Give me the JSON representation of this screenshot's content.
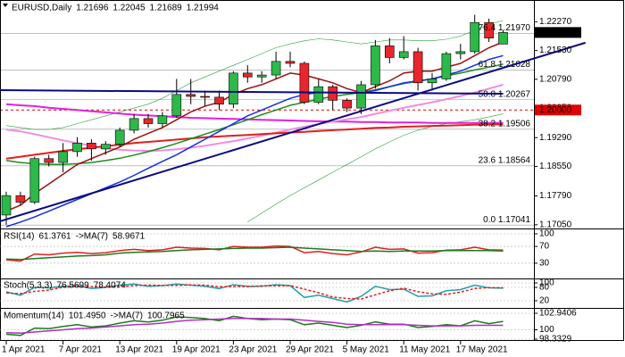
{
  "chart_data": [
    {
      "type": "candlestick",
      "title": "EURUSD,Daily",
      "up_color": "#2db84a",
      "down_color": "#e8262b",
      "categories": [
        "1 Apr 2021",
        null,
        null,
        null,
        "7 Apr 2021",
        null,
        null,
        null,
        "13 Apr 2021",
        null,
        null,
        null,
        "19 Apr 2021",
        null,
        null,
        null,
        "23 Apr 2021",
        null,
        null,
        null,
        "29 Apr 2021",
        null,
        null,
        null,
        "5 May 2021",
        null,
        null,
        null,
        "11 May 2021",
        null,
        null,
        null,
        "17 May 2021",
        null,
        null,
        null
      ],
      "open": [
        1.173,
        1.178,
        1.1763,
        1.1875,
        1.1865,
        1.1893,
        1.1915,
        1.19,
        1.1912,
        1.1948,
        1.1978,
        1.1965,
        1.1985,
        1.204,
        1.2035,
        1.2033,
        1.2015,
        1.2095,
        1.2085,
        1.209,
        1.2125,
        1.212,
        1.202,
        1.206,
        1.2025,
        1.2005,
        1.2065,
        1.2165,
        1.2135,
        1.215,
        1.207,
        1.208,
        1.2145,
        1.215,
        1.2225,
        1.21696
      ],
      "high": [
        1.179,
        1.179,
        1.188,
        1.1885,
        1.1915,
        1.193,
        1.1925,
        1.192,
        1.1955,
        1.199,
        1.199,
        1.1995,
        1.208,
        1.208,
        1.205,
        1.205,
        1.21,
        1.2115,
        1.21,
        1.215,
        1.215,
        1.2125,
        1.208,
        1.2065,
        1.203,
        1.2075,
        1.218,
        1.2185,
        1.219,
        1.216,
        1.2095,
        1.215,
        1.217,
        1.2245,
        1.2235,
        1.22045
      ],
      "low": [
        1.1705,
        1.1755,
        1.1758,
        1.1855,
        1.184,
        1.188,
        1.187,
        1.1885,
        1.1905,
        1.194,
        1.1955,
        1.1955,
        1.198,
        1.2015,
        1.201,
        1.2,
        1.2005,
        1.207,
        1.207,
        1.208,
        1.211,
        1.2015,
        1.2015,
        1.2,
        1.1995,
        1.199,
        1.2055,
        1.212,
        1.213,
        1.205,
        1.205,
        1.2075,
        1.213,
        1.2145,
        1.2175,
        1.21689
      ],
      "close": [
        1.178,
        1.1763,
        1.1875,
        1.1865,
        1.1893,
        1.1915,
        1.19,
        1.1912,
        1.1948,
        1.1978,
        1.1965,
        1.1985,
        1.204,
        1.2035,
        1.2033,
        1.2015,
        1.2095,
        1.2085,
        1.209,
        1.2125,
        1.212,
        1.202,
        1.206,
        1.2025,
        1.2005,
        1.2065,
        1.2165,
        1.2135,
        1.215,
        1.207,
        1.208,
        1.2145,
        1.215,
        1.2225,
        1.2185,
        1.21994
      ],
      "series": [
        {
          "color": "#2e9e3a",
          "width": 0.6,
          "values": [
            1.196,
            1.1955,
            1.195,
            1.195,
            1.1955,
            1.1965,
            1.1975,
            1.1985,
            1.1995,
            1.2005,
            1.2015,
            1.203,
            1.205,
            1.207,
            1.2085,
            1.21,
            1.2115,
            1.213,
            1.2145,
            1.216,
            1.217,
            1.2178,
            1.2183,
            1.218,
            1.2175,
            1.217,
            1.2175,
            1.218,
            1.218,
            1.2178,
            1.2178,
            1.2182,
            1.219,
            1.2205,
            1.222,
            1.223
          ]
        },
        {
          "color": "#2e9e3a",
          "width": 0.6,
          "values": [
            null,
            null,
            null,
            null,
            null,
            null,
            null,
            null,
            null,
            null,
            null,
            null,
            null,
            null,
            null,
            null,
            null,
            1.1712,
            1.1735,
            1.1758,
            1.178,
            1.18,
            1.182,
            1.184,
            1.186,
            1.188,
            1.19,
            1.1918,
            1.1935,
            1.1948,
            1.1958,
            1.1965,
            1.197,
            1.1975,
            1.1982,
            1.199
          ]
        },
        {
          "color": "#e020e0",
          "width": 2,
          "values": [
            1.2015,
            1.2012,
            1.201,
            1.2006,
            1.2003,
            1.2,
            1.1997,
            1.1994,
            1.1991,
            1.1988,
            1.1986,
            1.1984,
            1.1982,
            1.198,
            1.1979,
            1.1978,
            1.1977,
            1.1976,
            1.1975,
            1.1974,
            1.1973,
            1.1972,
            1.1971,
            1.197,
            1.197,
            1.1969,
            1.1969,
            1.1968,
            1.1968,
            1.1968,
            1.1967,
            1.1967,
            1.1967,
            1.1967,
            1.1967,
            1.1967
          ]
        },
        {
          "color": "#f08ce0",
          "width": 2,
          "values": [
            1.195,
            1.1945,
            1.1938,
            1.193,
            1.1922,
            1.1915,
            1.1908,
            1.1902,
            1.1898,
            1.1896,
            1.1895,
            1.1896,
            1.1899,
            1.1903,
            1.1908,
            1.1914,
            1.192,
            1.1927,
            1.1934,
            1.1942,
            1.195,
            1.1957,
            1.1964,
            1.197,
            1.1976,
            1.1982,
            1.199,
            1.1998,
            1.2006,
            1.2013,
            1.202,
            1.2028,
            1.2036,
            1.2045,
            1.2055,
            1.2065
          ]
        },
        {
          "color": "#e02020",
          "width": 2,
          "values": [
            1.1875,
            1.188,
            1.1885,
            1.189,
            1.1895,
            1.1899,
            1.1903,
            1.1907,
            1.1911,
            1.1915,
            1.1918,
            1.1921,
            1.1924,
            1.1927,
            1.193,
            1.1932,
            1.1934,
            1.1936,
            1.1938,
            1.194,
            1.1942,
            1.1944,
            1.1946,
            1.1948,
            1.195,
            1.1952,
            1.1954,
            1.1955,
            1.1957,
            1.1958,
            1.1959,
            1.196,
            1.1961,
            1.1962,
            1.1963,
            1.1963
          ]
        },
        {
          "color": "#1e8c1e",
          "width": 1.5,
          "values": [
            1.187,
            1.1865,
            1.1862,
            1.186,
            1.186,
            1.1862,
            1.1865,
            1.187,
            1.1876,
            1.1884,
            1.1893,
            1.1903,
            1.1914,
            1.1926,
            1.1938,
            1.195,
            1.1962,
            1.1975,
            1.1988,
            1.2,
            1.2012,
            1.202,
            1.2028,
            1.2035,
            1.204,
            1.2045,
            1.2052,
            1.206,
            1.2068,
            1.2074,
            1.208,
            1.2088,
            1.2095,
            1.2103,
            1.211,
            1.2118
          ]
        },
        {
          "color": "#1530e0",
          "width": 1.5,
          "values": [
            1.17,
            1.1712,
            1.1725,
            1.174,
            1.1755,
            1.177,
            1.1785,
            1.18,
            1.1815,
            1.1832,
            1.185,
            1.1868,
            1.1885,
            1.1905,
            1.1925,
            1.1945,
            1.1965,
            1.1985,
            1.2,
            1.2015,
            1.203,
            1.204,
            1.2045,
            1.2045,
            1.2045,
            1.2045,
            1.205,
            1.206,
            1.207,
            1.2075,
            1.208,
            1.209,
            1.21,
            1.2115,
            1.213,
            1.214
          ]
        },
        {
          "color": "#9b1010",
          "width": 1.5,
          "values": [
            1.174,
            1.1755,
            1.1785,
            1.181,
            1.1835,
            1.186,
            1.1875,
            1.189,
            1.1905,
            1.1925,
            1.194,
            1.1955,
            1.1975,
            1.1995,
            1.201,
            1.202,
            1.204,
            1.2055,
            1.2065,
            1.208,
            1.2095,
            1.209,
            1.208,
            1.207,
            1.2055,
            1.2045,
            1.206,
            1.2075,
            1.2095,
            1.21,
            1.21,
            1.211,
            1.212,
            1.214,
            1.216,
            1.2175
          ]
        }
      ],
      "trendlines": [
        {
          "color": "#0a0a80",
          "x": [
            -0.44,
            40.8
          ],
          "values": [
            1.1714,
            1.2173
          ]
        },
        {
          "color": "#0a0a80",
          "x": [
            -0.44,
            35
          ],
          "values": [
            1.2051,
            1.2042
          ]
        }
      ],
      "fib_levels": [
        {
          "value": 1.2197,
          "label": "76.4 1.21970"
        },
        {
          "value": 1.21028,
          "label": "61.8 1.21028"
        },
        {
          "value": 1.20267,
          "label": "50.0 1.20267"
        },
        {
          "value": 1.19506,
          "label": "38.2 1.19506"
        },
        {
          "value": 1.18564,
          "label": "23.6 1.18564"
        },
        {
          "value": 1.17041,
          "label": "0.0 1.17041"
        }
      ],
      "level": {
        "value": 1.2,
        "label": "1.20000",
        "color": "#e00000"
      },
      "ylim": [
        1.17,
        1.2276
      ],
      "yticks": [
        {
          "value": 1.2227,
          "label": "1.22270"
        },
        {
          "value": 1.2153,
          "label": "1.21530"
        },
        {
          "value": 1.2079,
          "label": "1.20790"
        },
        {
          "value": 1.2005,
          "label": "1.20050"
        },
        {
          "value": 1.1929,
          "label": "1.19290"
        },
        {
          "value": 1.1855,
          "label": "1.18550"
        },
        {
          "value": 1.1779,
          "label": "1.17790"
        },
        {
          "value": 1.1705,
          "label": "1.17050"
        }
      ]
    },
    {
      "type": "line",
      "grid": true,
      "series": [
        {
          "name": "RSI(14)",
          "color": "#e02020",
          "values": [
            38,
            35,
            52,
            50,
            54,
            56,
            53,
            55,
            60,
            63,
            60,
            62,
            68,
            66,
            65,
            62,
            70,
            68,
            68,
            71,
            70,
            55,
            58,
            53,
            50,
            57,
            68,
            63,
            64,
            54,
            55,
            61,
            62,
            68,
            62,
            61.3761
          ]
        },
        {
          "name": "->MA(7)",
          "color": "#1e7a1e",
          "values": [
            40,
            39,
            41,
            43,
            45,
            47,
            48,
            50,
            54,
            56,
            57,
            58,
            60,
            62,
            63,
            64,
            65,
            66,
            66,
            67,
            68,
            66,
            64,
            62,
            60,
            58,
            59,
            58,
            59,
            59,
            59,
            60,
            60,
            60,
            60,
            58.9671
          ]
        }
      ],
      "ylim": [
        0,
        100
      ],
      "yticks": [
        100,
        70,
        30
      ]
    },
    {
      "type": "line",
      "grid": true,
      "title": "Stoch(5,3,3)",
      "series": [
        {
          "color": "#20a0a8",
          "dash": false,
          "values": [
            60,
            45,
            80,
            78,
            85,
            88,
            75,
            80,
            90,
            95,
            85,
            88,
            95,
            90,
            85,
            75,
            92,
            85,
            85,
            92,
            88,
            35,
            45,
            30,
            15,
            40,
            85,
            70,
            72,
            40,
            42,
            65,
            70,
            90,
            78,
            76.5699
          ]
        },
        {
          "color": "#e02020",
          "dash": true,
          "values": [
            55,
            52,
            62,
            68,
            81,
            84,
            83,
            81,
            82,
            88,
            90,
            89,
            89,
            91,
            90,
            83,
            84,
            84,
            87,
            87,
            88,
            72,
            56,
            37,
            30,
            28,
            47,
            65,
            76,
            61,
            51,
            49,
            59,
            75,
            79,
            78.4074
          ]
        }
      ],
      "ylim": [
        0,
        100
      ],
      "yticks": [
        100,
        80,
        20
      ]
    },
    {
      "type": "line",
      "grid": true,
      "series": [
        {
          "name": "Momentum(14)",
          "color": "#1e7a1e",
          "values": [
            99.2,
            99.0,
            100.3,
            100.2,
            100.6,
            100.9,
            100.5,
            100.7,
            101.2,
            101.6,
            101.4,
            101.7,
            102.3,
            102.2,
            102.0,
            101.6,
            102.4,
            102.0,
            101.8,
            101.9,
            101.8,
            100.9,
            101.2,
            100.8,
            100.4,
            100.8,
            101.4,
            101.0,
            101.0,
            100.4,
            100.6,
            100.9,
            100.7,
            101.6,
            101.1,
            101.495
          ],
          "value_labels": [
            null,
            null,
            null,
            null,
            null,
            null,
            null,
            null,
            null,
            null,
            null,
            null,
            null,
            null,
            null,
            null,
            null,
            null,
            null,
            null,
            null,
            null,
            null,
            null,
            null,
            null,
            null,
            null,
            null,
            null,
            null,
            null,
            null,
            null,
            null,
            "101.4950"
          ]
        },
        {
          "name": "->MA(7)",
          "color": "#b030c0",
          "values": [
            99.5,
            99.4,
            99.6,
            99.8,
            100.0,
            100.2,
            100.3,
            100.5,
            100.7,
            100.9,
            101.0,
            101.2,
            101.5,
            101.7,
            101.8,
            101.9,
            102.0,
            102.0,
            102.0,
            101.9,
            101.9,
            101.7,
            101.5,
            101.3,
            101.0,
            100.9,
            100.9,
            100.9,
            100.9,
            100.8,
            100.7,
            100.7,
            100.7,
            100.8,
            100.8,
            100.7965
          ]
        }
      ],
      "ylim": [
        98.3329,
        102.9406
      ],
      "yticks": [
        102.9406,
        100,
        98.3329
      ]
    }
  ]
}
